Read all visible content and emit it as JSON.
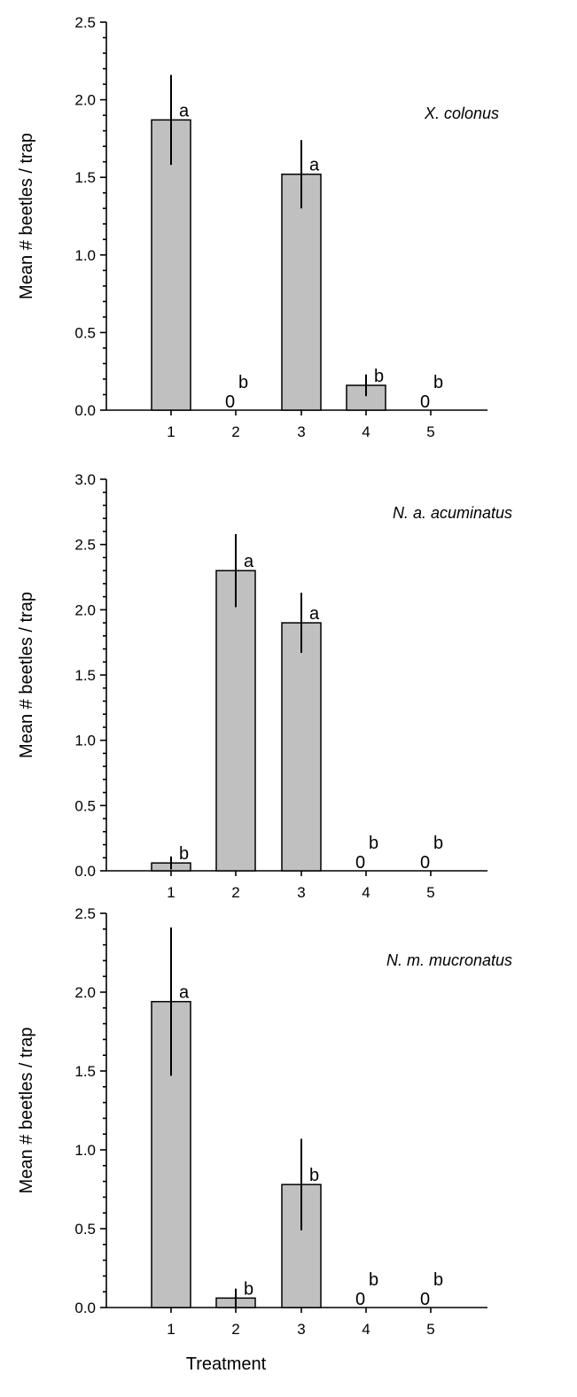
{
  "chart_data": [
    {
      "type": "bar",
      "species": "X. colonus",
      "categories": [
        "1",
        "2",
        "3",
        "4",
        "5"
      ],
      "values": [
        1.87,
        0,
        1.52,
        0.16,
        0
      ],
      "error": [
        0.29,
        0,
        0.22,
        0.07,
        0
      ],
      "letters": [
        "a",
        "b",
        "a",
        "b",
        "b"
      ],
      "zero_labels": [
        "",
        "0",
        "",
        "",
        "0"
      ],
      "ylabel": "Mean # beetles / trap",
      "ylim": [
        0,
        2.5
      ],
      "yticks": [
        "0.0",
        "0.5",
        "1.0",
        "1.5",
        "2.0",
        "2.5"
      ],
      "xlabel": ""
    },
    {
      "type": "bar",
      "species": "N. a. acuminatus",
      "categories": [
        "1",
        "2",
        "3",
        "4",
        "5"
      ],
      "values": [
        0.06,
        2.3,
        1.9,
        0,
        0
      ],
      "error": [
        0.05,
        0.28,
        0.23,
        0,
        0
      ],
      "letters": [
        "b",
        "a",
        "a",
        "b",
        "b"
      ],
      "zero_labels": [
        "",
        "",
        "",
        "0",
        "0"
      ],
      "ylabel": "Mean # beetles / trap",
      "ylim": [
        0,
        3.0
      ],
      "yticks": [
        "0.0",
        "0.5",
        "1.0",
        "1.5",
        "2.0",
        "2.5",
        "3.0"
      ],
      "xlabel": ""
    },
    {
      "type": "bar",
      "species": "N. m. mucronatus",
      "categories": [
        "1",
        "2",
        "3",
        "4",
        "5"
      ],
      "values": [
        1.94,
        0.06,
        0.78,
        0,
        0
      ],
      "error": [
        0.47,
        0.06,
        0.29,
        0,
        0
      ],
      "letters": [
        "a",
        "b",
        "b",
        "b",
        "b"
      ],
      "zero_labels": [
        "",
        "",
        "",
        "0",
        "0"
      ],
      "ylabel": "Mean # beetles / trap",
      "ylim": [
        0,
        2.5
      ],
      "yticks": [
        "0.0",
        "0.5",
        "1.0",
        "1.5",
        "2.0",
        "2.5"
      ],
      "xlabel": "Treatment"
    }
  ],
  "colors": {
    "bar_fill": "#c0c0c0",
    "axis": "#000000"
  }
}
